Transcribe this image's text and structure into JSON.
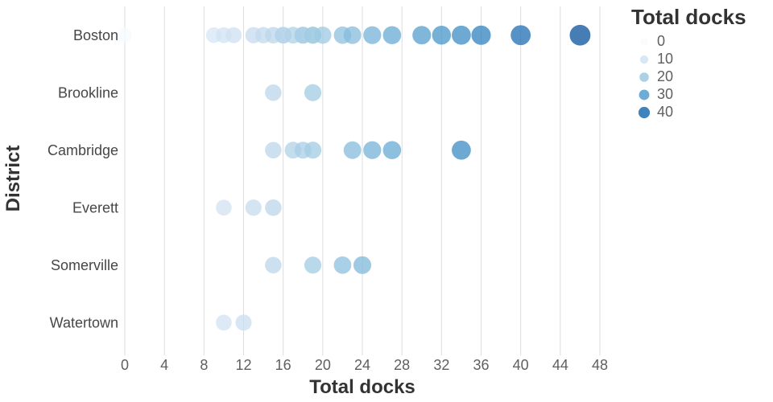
{
  "chart_data": {
    "type": "scatter",
    "title": "",
    "xlabel": "Total docks",
    "ylabel": "District",
    "xlim": [
      0,
      48
    ],
    "x_ticks": [
      0,
      4,
      8,
      12,
      16,
      20,
      24,
      28,
      32,
      36,
      40,
      44,
      48
    ],
    "grid": true,
    "categories": [
      "Boston",
      "Brookline",
      "Cambridge",
      "Everett",
      "Somerville",
      "Watertown"
    ],
    "series": [
      {
        "name": "Boston",
        "values": [
          0,
          9,
          10,
          11,
          13,
          14,
          15,
          16,
          16,
          17,
          18,
          18,
          19,
          19,
          20,
          22,
          23,
          25,
          27,
          30,
          32,
          34,
          36,
          40,
          46
        ]
      },
      {
        "name": "Brookline",
        "values": [
          15,
          19
        ]
      },
      {
        "name": "Cambridge",
        "values": [
          15,
          17,
          18,
          19,
          23,
          25,
          27,
          34
        ]
      },
      {
        "name": "Everett",
        "values": [
          10,
          13,
          15
        ]
      },
      {
        "name": "Somerville",
        "values": [
          15,
          19,
          22,
          24
        ]
      },
      {
        "name": "Watertown",
        "values": [
          10,
          12
        ]
      }
    ],
    "legend": {
      "title": "Total docks",
      "values": [
        "0",
        "10",
        "20",
        "30",
        "40"
      ],
      "position": "top-right"
    },
    "colors": {
      "scheme": "blues",
      "stops": [
        "#f7fbff",
        "#deebf7",
        "#c6dbef",
        "#9ecae1",
        "#6baed6",
        "#4292c6",
        "#2171b5",
        "#08519c"
      ],
      "domain": [
        0,
        46
      ],
      "point_opacity": 0.75
    }
  }
}
